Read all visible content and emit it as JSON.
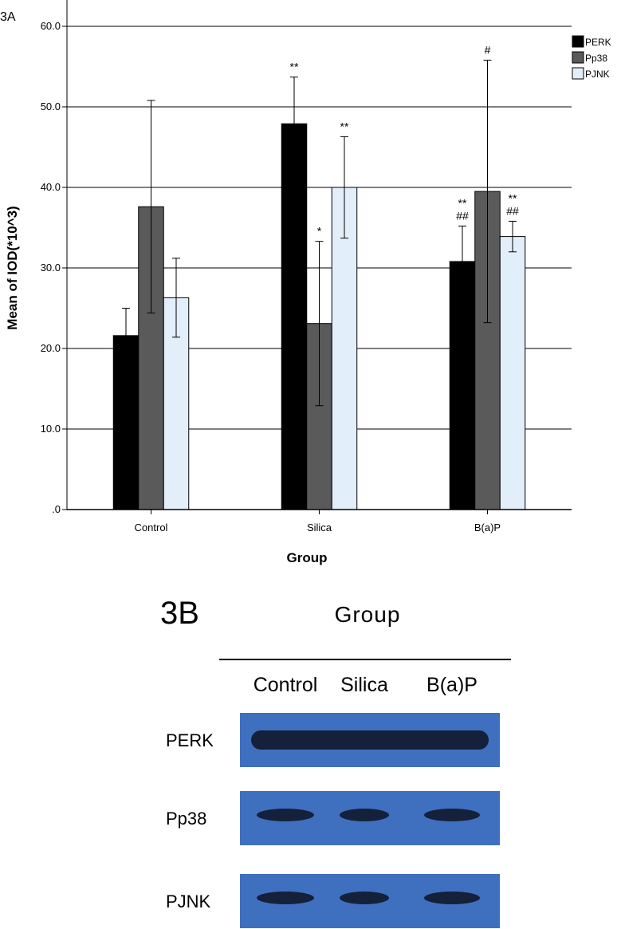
{
  "chart_data": {
    "type": "bar",
    "panel_label": "3A",
    "title": "",
    "xlabel": "Group",
    "ylabel": "Mean of IOD(*10^3)",
    "ylim": [
      0,
      60
    ],
    "yticks": [
      0,
      10,
      20,
      30,
      40,
      50,
      60
    ],
    "ytick_labels": [
      ".0",
      "10.0",
      "20.0",
      "30.0",
      "40.0",
      "50.0",
      "60.0"
    ],
    "grid": true,
    "legend_position": "top-right",
    "categories": [
      "Control",
      "Silica",
      "B(a)P"
    ],
    "series": [
      {
        "name": "PERK",
        "color": "#000000",
        "values": [
          21.6,
          47.9,
          30.8
        ],
        "error": [
          3.4,
          5.8,
          4.4
        ],
        "annotations": [
          "",
          "**",
          "**|##"
        ]
      },
      {
        "name": "Pp38",
        "color": "#5a5a5a",
        "values": [
          37.6,
          23.1,
          39.5
        ],
        "error": [
          13.2,
          10.2,
          16.3
        ],
        "annotations": [
          "",
          "*",
          "#"
        ]
      },
      {
        "name": "PJNK",
        "color": "#e3eefb",
        "values": [
          26.3,
          40.0,
          33.9
        ],
        "error": [
          4.9,
          6.3,
          1.9
        ],
        "annotations": [
          "",
          "**",
          "**|##"
        ]
      }
    ]
  },
  "blot": {
    "panel_label": "3B",
    "header": "Group",
    "lanes": [
      "Control",
      "Silica",
      "B(a)P"
    ],
    "rows": [
      "PERK",
      "Pp38",
      "PJNK"
    ],
    "membrane_color": "#3f6fbf",
    "band_color": "#15203a"
  }
}
